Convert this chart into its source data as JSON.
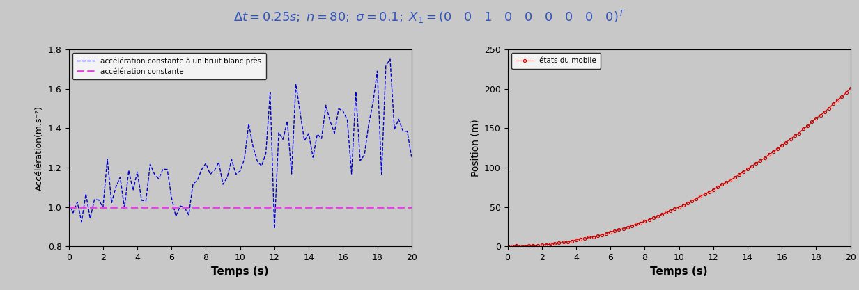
{
  "title_color": "#3355bb",
  "title_fontsize": 13,
  "bg_color": "#c8c8c8",
  "left_ylabel": "Accélération(m.s⁻²)",
  "left_xlabel": "Temps (s)",
  "left_ylim": [
    0.8,
    1.8
  ],
  "left_xlim": [
    0,
    20
  ],
  "left_yticks": [
    0.8,
    1.0,
    1.2,
    1.4,
    1.6,
    1.8
  ],
  "left_xticks": [
    0,
    2,
    4,
    6,
    8,
    10,
    12,
    14,
    16,
    18,
    20
  ],
  "left_legend1": "accélération constante à un bruit blanc près",
  "left_legend2": "accélération constante",
  "right_ylabel": "Position (m)",
  "right_xlabel": "Temps (s)",
  "right_ylim": [
    0,
    250
  ],
  "right_xlim": [
    0,
    20
  ],
  "right_yticks": [
    0,
    50,
    100,
    150,
    200,
    250
  ],
  "right_xticks": [
    0,
    2,
    4,
    6,
    8,
    10,
    12,
    14,
    16,
    18,
    20
  ],
  "right_legend": "états du mobile",
  "noisy_accel_color": "#0000cc",
  "const_accel_color": "#dd44dd",
  "position_color": "#cc0000",
  "n": 80,
  "dt": 0.25,
  "sigma": 0.1,
  "accel_true": 1.0
}
